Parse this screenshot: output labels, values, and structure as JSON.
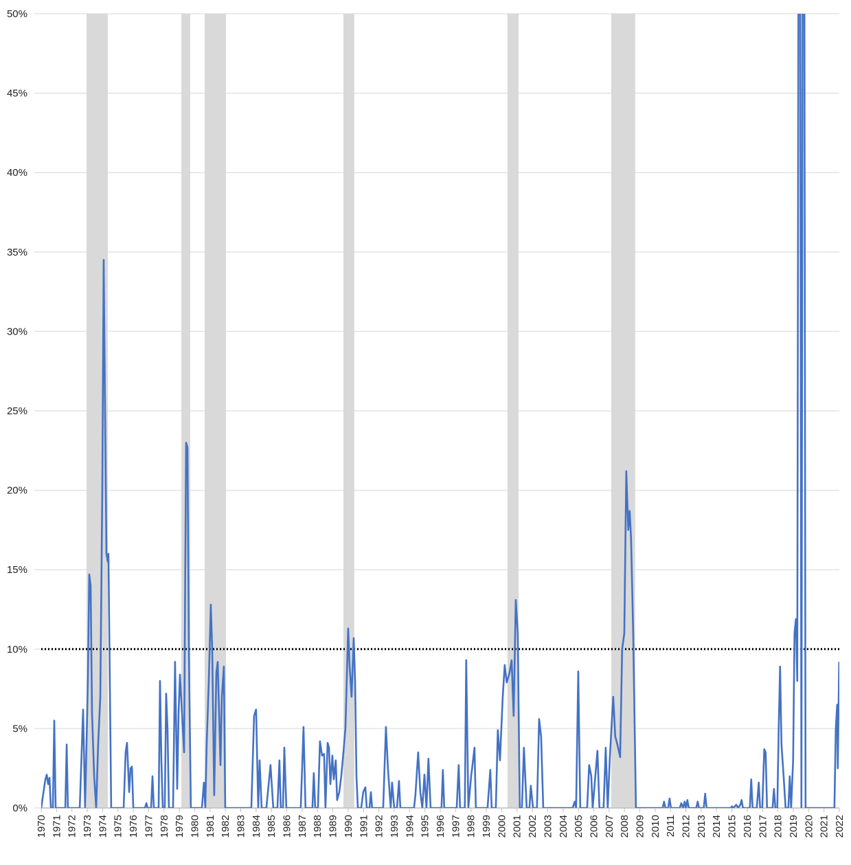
{
  "chart_data": {
    "type": "line",
    "xlim": [
      1970,
      2022
    ],
    "xticks": [
      1970,
      1971,
      1972,
      1973,
      1974,
      1975,
      1976,
      1977,
      1978,
      1979,
      1980,
      1981,
      1982,
      1983,
      1984,
      1985,
      1986,
      1987,
      1988,
      1989,
      1990,
      1991,
      1992,
      1993,
      1994,
      1995,
      1996,
      1997,
      1998,
      1999,
      2000,
      2001,
      2002,
      2003,
      2004,
      2005,
      2006,
      2007,
      2008,
      2009,
      2010,
      2011,
      2012,
      2013,
      2014,
      2015,
      2016,
      2017,
      2018,
      2019,
      2020,
      2021,
      2022
    ],
    "ylim": [
      0,
      50
    ],
    "yticks": [
      {
        "value": 0,
        "label": "0%"
      },
      {
        "value": 5,
        "label": "5%"
      },
      {
        "value": 10,
        "label": "10%"
      },
      {
        "value": 15,
        "label": "15%"
      },
      {
        "value": 20,
        "label": "20%"
      },
      {
        "value": 25,
        "label": "25%"
      },
      {
        "value": 30,
        "label": "30%"
      },
      {
        "value": 35,
        "label": "35%"
      },
      {
        "value": 40,
        "label": "40%"
      },
      {
        "value": 45,
        "label": "45%"
      },
      {
        "value": 50,
        "label": "50%"
      }
    ],
    "grid": true,
    "color": "#4472c4",
    "shade_color": "#d9d9d9",
    "shaded_ranges": [
      [
        1972.95,
        1974.34
      ],
      [
        1979.13,
        1979.71
      ],
      [
        1980.65,
        1982.04
      ],
      [
        1989.69,
        1990.4
      ],
      [
        2000.38,
        2001.1
      ],
      [
        2007.14,
        2008.7
      ]
    ],
    "reference_line": {
      "value": 10,
      "color": "#000000"
    },
    "x": [
      1970.0,
      1970.27,
      1970.36,
      1970.45,
      1970.54,
      1970.63,
      1970.76,
      1970.85,
      1970.94,
      1971.57,
      1971.66,
      1971.74,
      1972.51,
      1972.73,
      1972.86,
      1973.04,
      1973.13,
      1973.22,
      1973.31,
      1973.45,
      1973.58,
      1973.71,
      1973.85,
      1973.98,
      1974.07,
      1974.16,
      1974.25,
      1974.34,
      1974.38,
      1974.47,
      1974.56,
      1975.37,
      1975.5,
      1975.59,
      1975.73,
      1975.82,
      1975.91,
      1976.0,
      1976.76,
      1976.85,
      1976.93,
      1977.16,
      1977.25,
      1977.34,
      1977.65,
      1977.74,
      1977.83,
      1977.92,
      1978.05,
      1978.14,
      1978.23,
      1978.32,
      1978.59,
      1978.72,
      1978.86,
      1978.95,
      1979.04,
      1979.17,
      1979.31,
      1979.44,
      1979.53,
      1979.62,
      1979.75,
      1980.47,
      1980.6,
      1980.69,
      1980.78,
      1980.92,
      1981.05,
      1981.14,
      1981.27,
      1981.41,
      1981.5,
      1981.59,
      1981.68,
      1981.77,
      1981.9,
      1981.99,
      1982.08,
      1983.69,
      1983.87,
      1984.0,
      1984.14,
      1984.23,
      1984.36,
      1984.67,
      1984.94,
      1985.12,
      1985.39,
      1985.52,
      1985.61,
      1985.75,
      1985.84,
      1985.97,
      1986.82,
      1986.91,
      1987.09,
      1987.22,
      1987.67,
      1987.76,
      1987.85,
      1988.03,
      1988.16,
      1988.3,
      1988.43,
      1988.52,
      1988.66,
      1988.75,
      1988.84,
      1988.97,
      1989.06,
      1989.19,
      1989.28,
      1989.42,
      1989.55,
      1989.69,
      1989.82,
      1990.0,
      1990.09,
      1990.22,
      1990.36,
      1990.45,
      1990.54,
      1990.63,
      1990.85,
      1990.98,
      1991.12,
      1991.21,
      1991.39,
      1991.48,
      1991.56,
      1992.28,
      1992.46,
      1992.59,
      1992.77,
      1992.86,
      1993.0,
      1993.18,
      1993.31,
      1993.4,
      1994.29,
      1994.38,
      1994.56,
      1994.7,
      1994.83,
      1994.97,
      1995.1,
      1995.23,
      1995.37,
      1996.08,
      1996.17,
      1996.26,
      1997.07,
      1997.2,
      1997.29,
      1997.6,
      1997.69,
      1997.83,
      1998.01,
      1998.1,
      1998.23,
      1998.32,
      1999.08,
      1999.26,
      1999.35,
      1999.62,
      1999.75,
      1999.89,
      2000.07,
      2000.2,
      2000.33,
      2000.51,
      2000.65,
      2000.78,
      2000.92,
      2001.05,
      2001.18,
      2001.32,
      2001.45,
      2001.63,
      2001.81,
      2001.9,
      2002.04,
      2002.3,
      2002.44,
      2002.57,
      2002.71,
      2004.63,
      2004.76,
      2004.85,
      2004.99,
      2005.12,
      2005.57,
      2005.7,
      2005.84,
      2005.93,
      2006.06,
      2006.24,
      2006.37,
      2006.64,
      2006.78,
      2006.91,
      2007.04,
      2007.18,
      2007.27,
      2007.4,
      2007.54,
      2007.72,
      2007.85,
      2007.99,
      2008.12,
      2008.25,
      2008.34,
      2008.43,
      2008.57,
      2008.75,
      2010.49,
      2010.58,
      2010.67,
      2010.85,
      2010.94,
      2011.03,
      2011.61,
      2011.7,
      2011.83,
      2011.92,
      2012.01,
      2012.1,
      2012.19,
      2012.68,
      2012.77,
      2012.86,
      2013.17,
      2013.26,
      2013.35,
      2014.92,
      2015.01,
      2015.1,
      2015.28,
      2015.41,
      2015.55,
      2015.63,
      2015.72,
      2016.17,
      2016.26,
      2016.35,
      2016.62,
      2016.75,
      2016.84,
      2016.98,
      2017.11,
      2017.2,
      2017.29,
      2017.65,
      2017.74,
      2017.83,
      2017.96,
      2018.05,
      2018.14,
      2018.23,
      2018.37,
      2018.5,
      2018.68,
      2018.77,
      2018.86,
      2018.99,
      2019.08,
      2019.17,
      2019.26,
      2019.35,
      2019.44,
      2019.53,
      2019.62,
      2019.71,
      2019.8,
      2021.59,
      2021.68,
      2021.77,
      2021.86,
      2021.9,
      2021.99
    ],
    "values": [
      0,
      1.8,
      2.1,
      1.5,
      1.9,
      0,
      0,
      5.5,
      0,
      0,
      4,
      0,
      0,
      6.2,
      0,
      8,
      14.7,
      14,
      6,
      2,
      0,
      4,
      7,
      20,
      34.5,
      25,
      16,
      15.5,
      16,
      8,
      0,
      0,
      3.5,
      4.1,
      1,
      2.5,
      2.6,
      0,
      0,
      0.3,
      0,
      0,
      2,
      0,
      0,
      8,
      3,
      0,
      0,
      7.2,
      5,
      0,
      0,
      9.2,
      1.2,
      6,
      8.4,
      6,
      3.5,
      23,
      22.7,
      10,
      0,
      0,
      1.6,
      0,
      4,
      8,
      12.8,
      10,
      0.8,
      8.5,
      9.2,
      6,
      2.7,
      7,
      8.9,
      0,
      0,
      0,
      5.8,
      6.2,
      0,
      3,
      0,
      0,
      2.7,
      0,
      0,
      3,
      0,
      0,
      3.8,
      0,
      0,
      0,
      5.1,
      0,
      0,
      2.2,
      0,
      0,
      4.2,
      3.3,
      3.4,
      0,
      4.1,
      3.8,
      1.5,
      3.3,
      1.8,
      3,
      0.5,
      1,
      2,
      3.5,
      5,
      11.3,
      9,
      7,
      10.7,
      8,
      2,
      0,
      0,
      1,
      1.3,
      0,
      0,
      1,
      0,
      0,
      5.1,
      2.5,
      0,
      1.6,
      0,
      0,
      1.7,
      0,
      0,
      0.8,
      3.5,
      1,
      0,
      2.1,
      0,
      3.1,
      0,
      0,
      2.4,
      0,
      0,
      2.7,
      0,
      0,
      9.3,
      0,
      2,
      2.7,
      3.8,
      0,
      0,
      2.4,
      0,
      0,
      4.9,
      3,
      7,
      9,
      7.9,
      8.5,
      9.3,
      5.8,
      13.1,
      11,
      0,
      0,
      3.8,
      0,
      0,
      1.4,
      0,
      0,
      5.6,
      4.5,
      0,
      0,
      0.4,
      0,
      8.6,
      0,
      0,
      2.7,
      2,
      0,
      1.5,
      3.6,
      0,
      0,
      3.8,
      0,
      3,
      5.5,
      7,
      4.5,
      4,
      3.2,
      10,
      11,
      21.2,
      17.5,
      18.7,
      17,
      11,
      0,
      0,
      0.4,
      0,
      0,
      0.6,
      0,
      0,
      0.3,
      0,
      0.4,
      0,
      0.5,
      0,
      0,
      0.4,
      0,
      0,
      0.9,
      0,
      0,
      0.1,
      0,
      0.2,
      0,
      0.2,
      0.5,
      0,
      0,
      1.8,
      0,
      0,
      1.6,
      0,
      0,
      3.7,
      3.5,
      0,
      0,
      1.2,
      0,
      0,
      5,
      8.9,
      4,
      2,
      0,
      0,
      2,
      0,
      3,
      11,
      11.9,
      8,
      60,
      60,
      0,
      60,
      60,
      0,
      0,
      0,
      5,
      6.5,
      2.5,
      9.2
    ]
  }
}
